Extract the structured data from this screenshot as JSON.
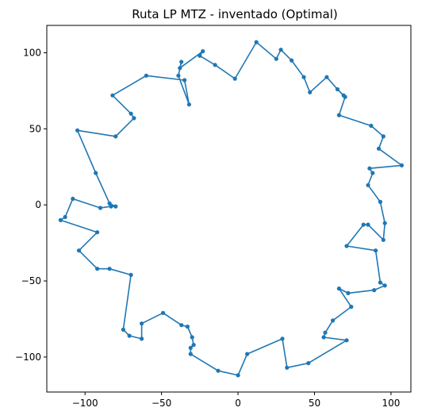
{
  "chart_data": {
    "type": "line",
    "title": "Ruta LP MTZ - inventado (Optimal)",
    "xlabel": "",
    "ylabel": "",
    "xlim": [
      -125,
      113
    ],
    "ylim": [
      -123,
      118
    ],
    "xticks": [
      -100,
      -50,
      0,
      50,
      100
    ],
    "yticks": [
      -100,
      -50,
      0,
      50,
      100
    ],
    "xtick_labels": [
      "−100",
      "−50",
      "0",
      "50",
      "100"
    ],
    "ytick_labels": [
      "−100",
      "−50",
      "0",
      "50",
      "100"
    ],
    "grid": false,
    "line_color": "#1f77b4",
    "series": [
      {
        "x": [
          12,
          25,
          28,
          35,
          43,
          47,
          58,
          65,
          69,
          70,
          66,
          87,
          95,
          92,
          107,
          86,
          88,
          85,
          93,
          96,
          95,
          85,
          82,
          71,
          90,
          93,
          96,
          89,
          72,
          66,
          74,
          62,
          57,
          56,
          71,
          46,
          32,
          29,
          6,
          0,
          -13,
          -31,
          -31,
          -29,
          -30,
          -33,
          -37,
          -49,
          -63,
          -63,
          -71,
          -75,
          -70,
          -84,
          -92,
          -104,
          -92,
          -116,
          -113,
          -108,
          -90,
          -83,
          -80,
          -84,
          -93,
          -105,
          -80,
          -68,
          -70,
          -82,
          -60,
          -35,
          -32,
          -39,
          -37,
          -38,
          -23,
          -25,
          -15,
          -2
        ],
        "y": [
          107,
          96,
          102,
          95,
          84,
          74,
          84,
          76,
          72,
          71,
          59,
          52,
          45,
          37,
          26,
          24,
          21,
          13,
          2,
          -12,
          -23,
          -13,
          -13,
          -27,
          -30,
          -51,
          -53,
          -56,
          -58,
          -55,
          -67,
          -76,
          -84,
          -87,
          -89,
          -104,
          -107,
          -88,
          -98,
          -112,
          -109,
          -98,
          -94,
          -92,
          -87,
          -80,
          -79,
          -71,
          -78,
          -88,
          -86,
          -82,
          -46,
          -42,
          -42,
          -30,
          -18,
          -10,
          -8,
          4,
          -2,
          -1,
          -1,
          1,
          21,
          49,
          45,
          57,
          60,
          72,
          85,
          82,
          66,
          85,
          94,
          90,
          101,
          98,
          92,
          83
        ]
      }
    ]
  }
}
